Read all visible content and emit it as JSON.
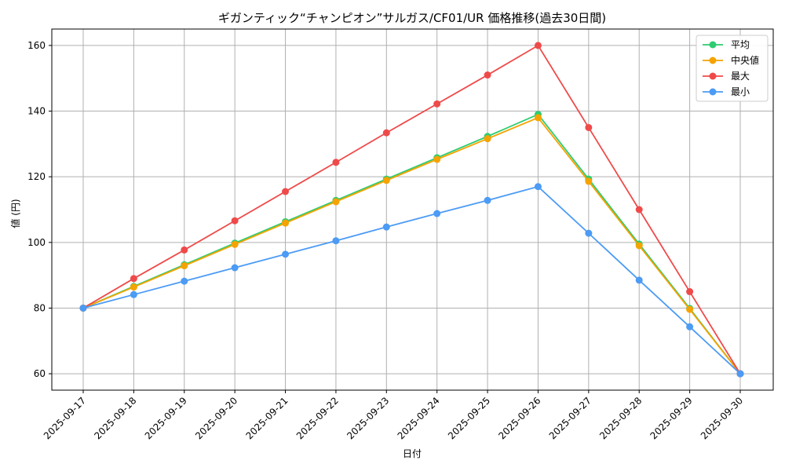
{
  "chart_data": {
    "type": "line",
    "title": "ギガンティック“チャンピオン”サルガス/CF01/UR 価格推移(過去30日間)",
    "xlabel": "日付",
    "ylabel": "値 (円)",
    "ylim": [
      55,
      165
    ],
    "yticks": [
      60,
      80,
      100,
      120,
      140,
      160
    ],
    "grid": true,
    "legend_position": "top-right",
    "categories": [
      "2025-09-17",
      "2025-09-18",
      "2025-09-19",
      "2025-09-20",
      "2025-09-21",
      "2025-09-22",
      "2025-09-23",
      "2025-09-24",
      "2025-09-25",
      "2025-09-26",
      "2025-09-27",
      "2025-09-28",
      "2025-09-29",
      "2025-09-30"
    ],
    "series": [
      {
        "name": "平均",
        "color": "#2ecc71",
        "values": [
          80,
          86.6,
          93.2,
          99.8,
          106.3,
          112.8,
          119.3,
          125.8,
          132.3,
          139.0,
          119.3,
          99.5,
          79.9,
          60
        ]
      },
      {
        "name": "中央値",
        "color": "#f5a300",
        "values": [
          80,
          86.4,
          92.9,
          99.4,
          105.9,
          112.4,
          118.9,
          125.3,
          131.6,
          138.0,
          118.6,
          99.0,
          79.6,
          60
        ]
      },
      {
        "name": "最大",
        "color": "#ef4a4a",
        "values": [
          80,
          89.0,
          97.7,
          106.6,
          115.5,
          124.4,
          133.4,
          142.2,
          151.0,
          160.0,
          135.0,
          110.0,
          85.0,
          60
        ]
      },
      {
        "name": "最小",
        "color": "#4c9bf5",
        "values": [
          80,
          84.1,
          88.2,
          92.3,
          96.4,
          100.5,
          104.7,
          108.8,
          112.8,
          117.0,
          102.8,
          88.5,
          74.3,
          60
        ]
      }
    ]
  }
}
